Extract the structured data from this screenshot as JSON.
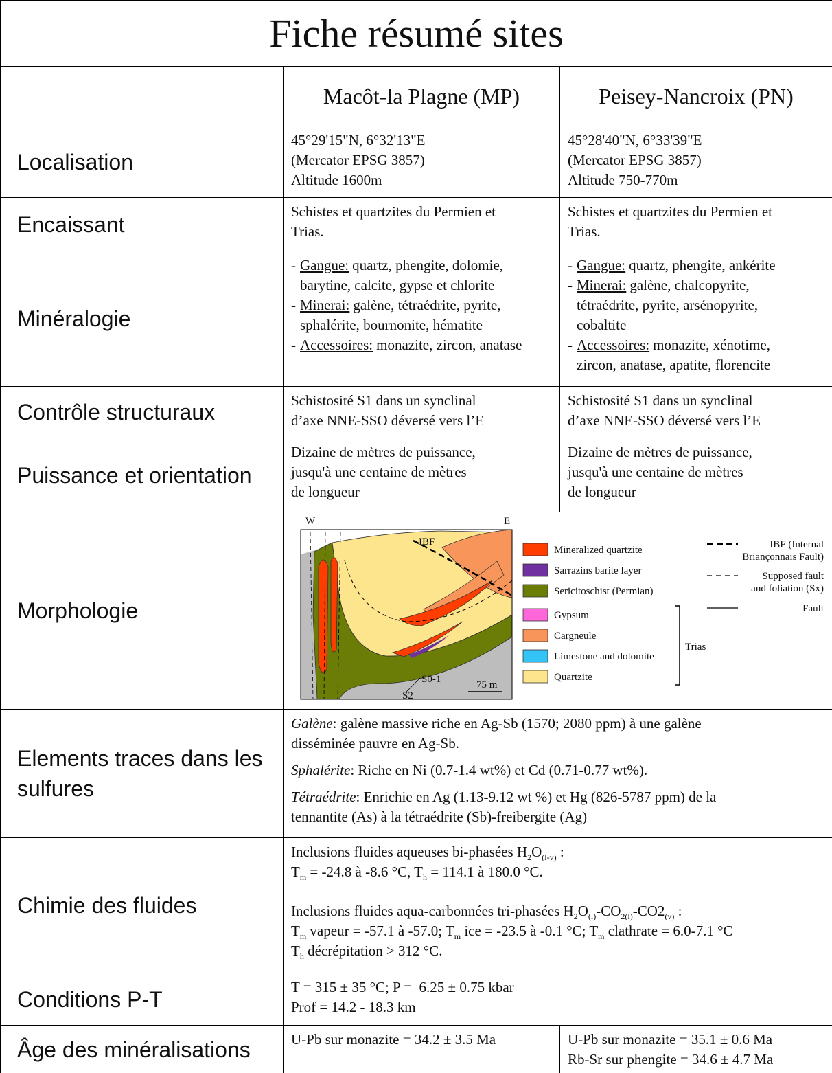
{
  "title": "Fiche résumé sites",
  "columns": [
    "Macôt-la Plagne (MP)",
    "Peisey-Nancroix (PN)"
  ],
  "rows": [
    {
      "label": "Localisation",
      "mp": [
        "45°29'15\"N, 6°32'13\"E",
        "(Mercator EPSG 3857)",
        "Altitude 1600m"
      ],
      "pn": [
        "45°28'40\"N, 6°33'39\"E",
        "(Mercator EPSG 3857)",
        "Altitude 750-770m"
      ]
    },
    {
      "label": "Encaissant",
      "mp": [
        "Schistes et quartzites du Permien et",
        "Trias."
      ],
      "pn": [
        "Schistes et quartzites du Permien et",
        "Trias."
      ]
    },
    {
      "label": "Minéralogie",
      "mp": [
        {
          "marker": "-",
          "label": "Gangue:",
          "lines": [
            "quartz, phengite, dolomie,",
            "barytine, calcite, gypse et chlorite"
          ]
        },
        {
          "marker": "-",
          "label": "Minerai:",
          "lines": [
            "galène, tétraédrite, pyrite,",
            "sphalérite, bournonite, hématite"
          ]
        },
        {
          "marker": "-",
          "label": "Accessoires:",
          "lines": [
            "monazite, zircon, anatase"
          ]
        }
      ],
      "pn": [
        {
          "marker": "-",
          "label": "Gangue:",
          "lines": [
            "quartz, phengite, ankérite"
          ]
        },
        {
          "marker": "-",
          "label": "Minerai:",
          "lines": [
            "galène, chalcopyrite,",
            "tétraédrite, pyrite, arsénopyrite,",
            "cobaltite"
          ]
        },
        {
          "marker": "-",
          "label": "Accessoires:",
          "lines": [
            "monazite, xénotime,",
            "zircon, anatase, apatite, florencite"
          ]
        }
      ]
    },
    {
      "label": "Contrôle structuraux",
      "mp": [
        "Schistosité S1 dans un synclinal",
        "d’axe NNE-SSO déversé vers l’E"
      ],
      "pn": [
        "Schistosité S1 dans un synclinal",
        "d’axe NNE-SSO déversé vers l’E"
      ]
    },
    {
      "label": "Puissance et orientation",
      "mp": [
        "Dizaine de mètres de puissance,",
        "jusqu'à une centaine de mètres",
        "de longueur"
      ],
      "pn": [
        "Dizaine de mètres de puissance,",
        "jusqu'à une centaine de mètres",
        "de longueur"
      ]
    },
    {
      "label": "Morphologie",
      "figure": {
        "w": "W",
        "e": "E",
        "ibf": "IBF",
        "s01": "S0-1",
        "s2": "S2",
        "scale": "75 m",
        "legend": [
          {
            "label": "Mineralized quartzite",
            "color": "#ff3d00"
          },
          {
            "label": "Sarrazins barite layer",
            "color": "#7030a0"
          },
          {
            "label": "Sericitoschist (Permian)",
            "color": "#6b7d06"
          },
          {
            "label": "Gypsum",
            "color": "#ff66d9"
          },
          {
            "label": "Cargneule",
            "color": "#f7955a"
          },
          {
            "label": "Limestone and dolomite",
            "color": "#33c3f5"
          },
          {
            "label": "Quartzite",
            "color": "#fde58e"
          }
        ],
        "trias": "Trias",
        "line_legend": [
          {
            "style": "bold-dashed",
            "lines": [
              "IBF (Internal",
              "Briançonnais Fault)"
            ]
          },
          {
            "style": "dashed",
            "lines": [
              "Supposed fault",
              "and foliation (Sx)"
            ]
          },
          {
            "style": "solid",
            "lines": [
              "Fault"
            ]
          }
        ]
      }
    },
    {
      "label": [
        "Elements traces dans les",
        "sulfures"
      ],
      "both": [
        {
          "mineral": "Galène",
          "lines": [
            ": galène massive riche en Ag-Sb (1570; 2080 ppm) à une galène",
            "disséminée pauvre en Ag-Sb."
          ]
        },
        {
          "mineral": "Sphalérite",
          "lines": [
            ": Riche en Ni (0.7-1.4 wt%) et Cd (0.71-0.77 wt%)."
          ]
        },
        {
          "mineral": "Tétraédrite",
          "lines": [
            ": Enrichie en Ag (1.13-9.12 wt %) et Hg (826-5787 ppm) de la",
            "tennantite (As) à la tétraédrite (Sb)-freibergite (Ag)"
          ]
        }
      ]
    },
    {
      "label": "Chimie des fluides",
      "both": [
        {
          "paragraph": [
            [
              "Inclusions fluides aqueuses bi-phasées H",
              {
                "sub": "2"
              },
              "O",
              {
                "sub": "(l-v)"
              },
              " :"
            ],
            [
              "T",
              {
                "sub": "m"
              },
              " = -24.8 à -8.6 °C, T",
              {
                "sub": "h"
              },
              " = 114.1 à 180.0 °C."
            ]
          ]
        },
        {
          "paragraph": [
            [
              "Inclusions fluides aqua-carbonnées tri-phasées H",
              {
                "sub": "2"
              },
              "O",
              {
                "sub": "(l)"
              },
              "-CO",
              {
                "sub": "2(l)"
              },
              "-CO2",
              {
                "sub": "(v)"
              },
              " :"
            ],
            [
              "T",
              {
                "sub": "m"
              },
              " vapeur = -57.1 à -57.0; T",
              {
                "sub": "m"
              },
              " ice = -23.5 à -0.1 °C; T",
              {
                "sub": "m"
              },
              " clathrate = 6.0-7.1 °C"
            ],
            [
              "T",
              {
                "sub": "h"
              },
              " décrépitation > 312 °C."
            ]
          ]
        }
      ]
    },
    {
      "label": "Conditions P-T",
      "both": [
        "T = 315 ± 35 °C; P =  6.25 ± 0.75 kbar",
        "Prof = 14.2 - 18.3 km"
      ]
    },
    {
      "label": "Âge des minéralisations",
      "mp": [
        "U-Pb sur monazite = 34.2 ± 3.5 Ma"
      ],
      "pn": [
        "U-Pb sur monazite = 35.1 ± 0.6 Ma",
        "Rb-Sr sur phengite = 34.6 ± 4.7 Ma"
      ]
    }
  ]
}
